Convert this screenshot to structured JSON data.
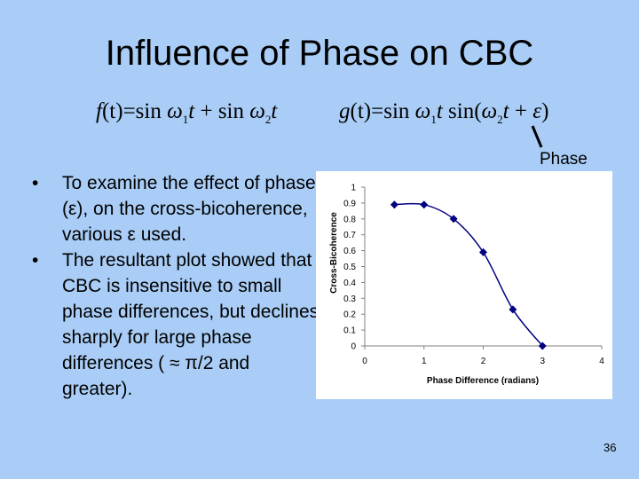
{
  "slide": {
    "title": "Influence of Phase on CBC",
    "phase_label": "Phase",
    "bullets": [
      "To examine the effect of phase (ε), on the cross-bicoherence, various ε used.",
      "The resultant plot showed that CBC is insensitive to small phase differences, but declines sharply for large phase differences ( ≈ π/2 and greater)."
    ],
    "slide_number": "36"
  },
  "equations": {
    "f": {
      "lhs": "f",
      "arg": "(t)",
      "eq": "=",
      "sin1": "sin",
      "w1": "ω",
      "s1": "1",
      "t1": "t",
      "plus": "+",
      "sin2": "sin",
      "w2": "ω",
      "s2": "2",
      "t2": "t"
    },
    "g": {
      "lhs": "g",
      "arg": "(t)",
      "eq": "=",
      "sin1": "sin",
      "w1": "ω",
      "s1": "1",
      "t1": "t",
      "sin2": "sin(",
      "w2": "ω",
      "s2": "2",
      "t2": "t",
      "plus": "+",
      "eps": "ε",
      "close": ")"
    }
  },
  "chart_data": {
    "type": "line",
    "title": "",
    "xlabel": "Phase Difference (radians)",
    "ylabel": "Cross-Bicoherence",
    "xlim": [
      0,
      4
    ],
    "ylim": [
      0,
      1
    ],
    "xticks": [
      0,
      1,
      2,
      3,
      4
    ],
    "yticks": [
      0,
      0.1,
      0.2,
      0.3,
      0.4,
      0.5,
      0.6,
      0.7,
      0.8,
      0.9,
      1
    ],
    "grid": false,
    "legend": "none",
    "marker": "diamond",
    "line_color": "#000080",
    "series": [
      {
        "x": [
          0.5,
          1.0,
          1.5,
          2.0,
          2.5,
          3.0
        ],
        "y": [
          0.89,
          0.89,
          0.8,
          0.59,
          0.23,
          0.0
        ]
      }
    ]
  },
  "colors": {
    "background": "#a9cdf6",
    "chart_background": "#ffffff",
    "series": "#000080"
  }
}
